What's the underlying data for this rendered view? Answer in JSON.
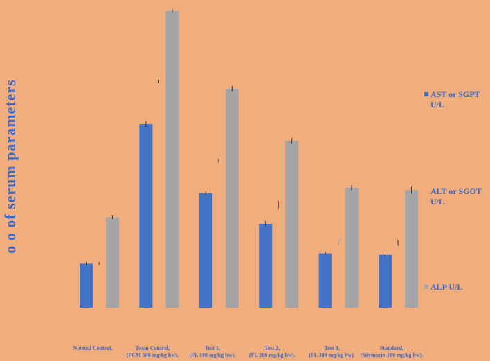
{
  "chart_data": {
    "type": "bar",
    "title": "",
    "ylabel": "o o of serum parameters",
    "xlabel": "",
    "categories": [
      [
        "Normal Control,",
        ""
      ],
      [
        "Toxin Control,",
        "(PCM 500 mg/kg bw)."
      ],
      [
        "Test 1,",
        "(FL 100 mg/kg bw)."
      ],
      [
        "Test 2,",
        "(FL 200 mg/kg bw)."
      ],
      [
        "Test 3,",
        "(FL 300 mg/kg bw)."
      ],
      [
        "Standard,",
        "(Silymarin 100 mg/kg bw)."
      ]
    ],
    "ylim": [
      0,
      100
    ],
    "grid": false,
    "legend_position": "right",
    "series": [
      {
        "name": "AST or SGPT U/L",
        "color": "#4472C4",
        "values": [
          15,
          62.5,
          39,
          28.5,
          18.5,
          18
        ],
        "errors": [
          0.6,
          1.0,
          0.7,
          1.0,
          0.7,
          0.6
        ]
      },
      {
        "name": "ALT or SGOT U/L",
        "color": "#FFC000",
        "hidden": true,
        "values": [
          0,
          0,
          0,
          0,
          0,
          0
        ],
        "errors": [
          0.5,
          0.6,
          0.6,
          1.2,
          1.0,
          1.0
        ]
      },
      {
        "name": "ALP U/L",
        "color": "#A5A5A5",
        "values": [
          30.8,
          101,
          74.5,
          56.8,
          40.8,
          40
        ],
        "errors": [
          0.6,
          0.7,
          1.0,
          1.0,
          0.9,
          1.1
        ]
      }
    ]
  }
}
